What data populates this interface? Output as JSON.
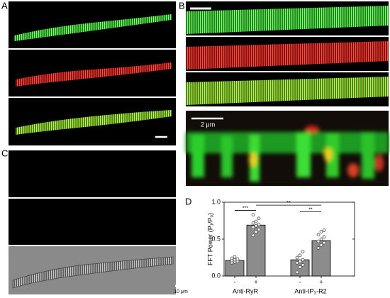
{
  "panels": {
    "labels": [
      "A",
      "B",
      "C",
      "D"
    ],
    "scale_bars": [
      "2 μm",
      "10 μm"
    ]
  },
  "chart_data": {
    "type": "bar",
    "y_label": "FFT Power (P₁/P₀)",
    "categories": [
      "-",
      "+",
      "-",
      "+"
    ],
    "groups": [
      "Anti-RyR",
      "Anti-IP₃-R2"
    ],
    "values": [
      0.21,
      0.69,
      0.22,
      0.48
    ],
    "color": "#8c8c8c",
    "points": [
      [
        0.18,
        0.19,
        0.2,
        0.21,
        0.22,
        0.23,
        0.24,
        0.26
      ],
      [
        0.55,
        0.6,
        0.63,
        0.66,
        0.68,
        0.7,
        0.72,
        0.74,
        0.78,
        0.83
      ],
      [
        0.05,
        0.12,
        0.15,
        0.18,
        0.2,
        0.22,
        0.25,
        0.28,
        0.33
      ],
      [
        0.38,
        0.42,
        0.45,
        0.47,
        0.5,
        0.53,
        0.56,
        0.6,
        0.62
      ]
    ],
    "significance": [
      {
        "from": 0,
        "to": 1,
        "y": 0.89,
        "label": "***"
      },
      {
        "from": 1,
        "to": 3,
        "y": 0.96,
        "label": "**"
      },
      {
        "from": 2,
        "to": 3,
        "y": 0.87,
        "label": "**"
      }
    ],
    "ylim": [
      0,
      1
    ],
    "yticks": [
      {
        "value": 0,
        "label": "0.0"
      },
      {
        "value": 0.5,
        "label": "0.5"
      },
      {
        "value": 1,
        "label": "1.0"
      }
    ]
  }
}
